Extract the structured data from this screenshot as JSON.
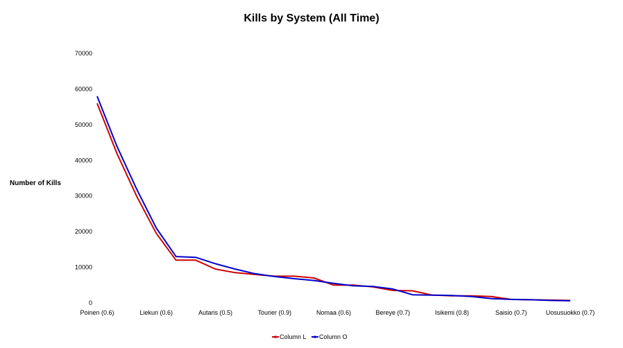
{
  "chart_data": {
    "type": "line",
    "title": "Kills by System (All Time)",
    "xlabel": "",
    "ylabel": "Number of Kills",
    "ylim": [
      0,
      70000
    ],
    "yticks": [
      0,
      10000,
      20000,
      30000,
      40000,
      50000,
      60000,
      70000
    ],
    "grid": false,
    "legend_position": "bottom",
    "tick_labels": [
      "Poinen (0.6)",
      "Liekuri (0.6)",
      "Autaris (0.5)",
      "Tourier (0.9)",
      "Nomaa (0.6)",
      "Bereye (0.7)",
      "Isikemi (0.8)",
      "Saisio (0.7)",
      "Uosusuokko (0.7)"
    ],
    "tick_index": [
      0,
      3,
      6,
      9,
      12,
      15,
      18,
      21,
      24
    ],
    "series": [
      {
        "name": "Column L",
        "color": "#cc0000",
        "values": [
          56000,
          42000,
          30000,
          19500,
          12000,
          12000,
          9500,
          8500,
          8000,
          7500,
          7500,
          7000,
          5000,
          5000,
          4500,
          3500,
          3400,
          2200,
          2000,
          2000,
          1800,
          1000,
          900,
          800,
          700
        ]
      },
      {
        "name": "Column O",
        "color": "#0000cc",
        "values": [
          58000,
          44000,
          32000,
          21000,
          13000,
          12800,
          11000,
          9500,
          8200,
          7400,
          6800,
          6300,
          5500,
          4800,
          4600,
          3900,
          2300,
          2200,
          2100,
          1800,
          1200,
          1000,
          900,
          700,
          600
        ]
      }
    ]
  }
}
